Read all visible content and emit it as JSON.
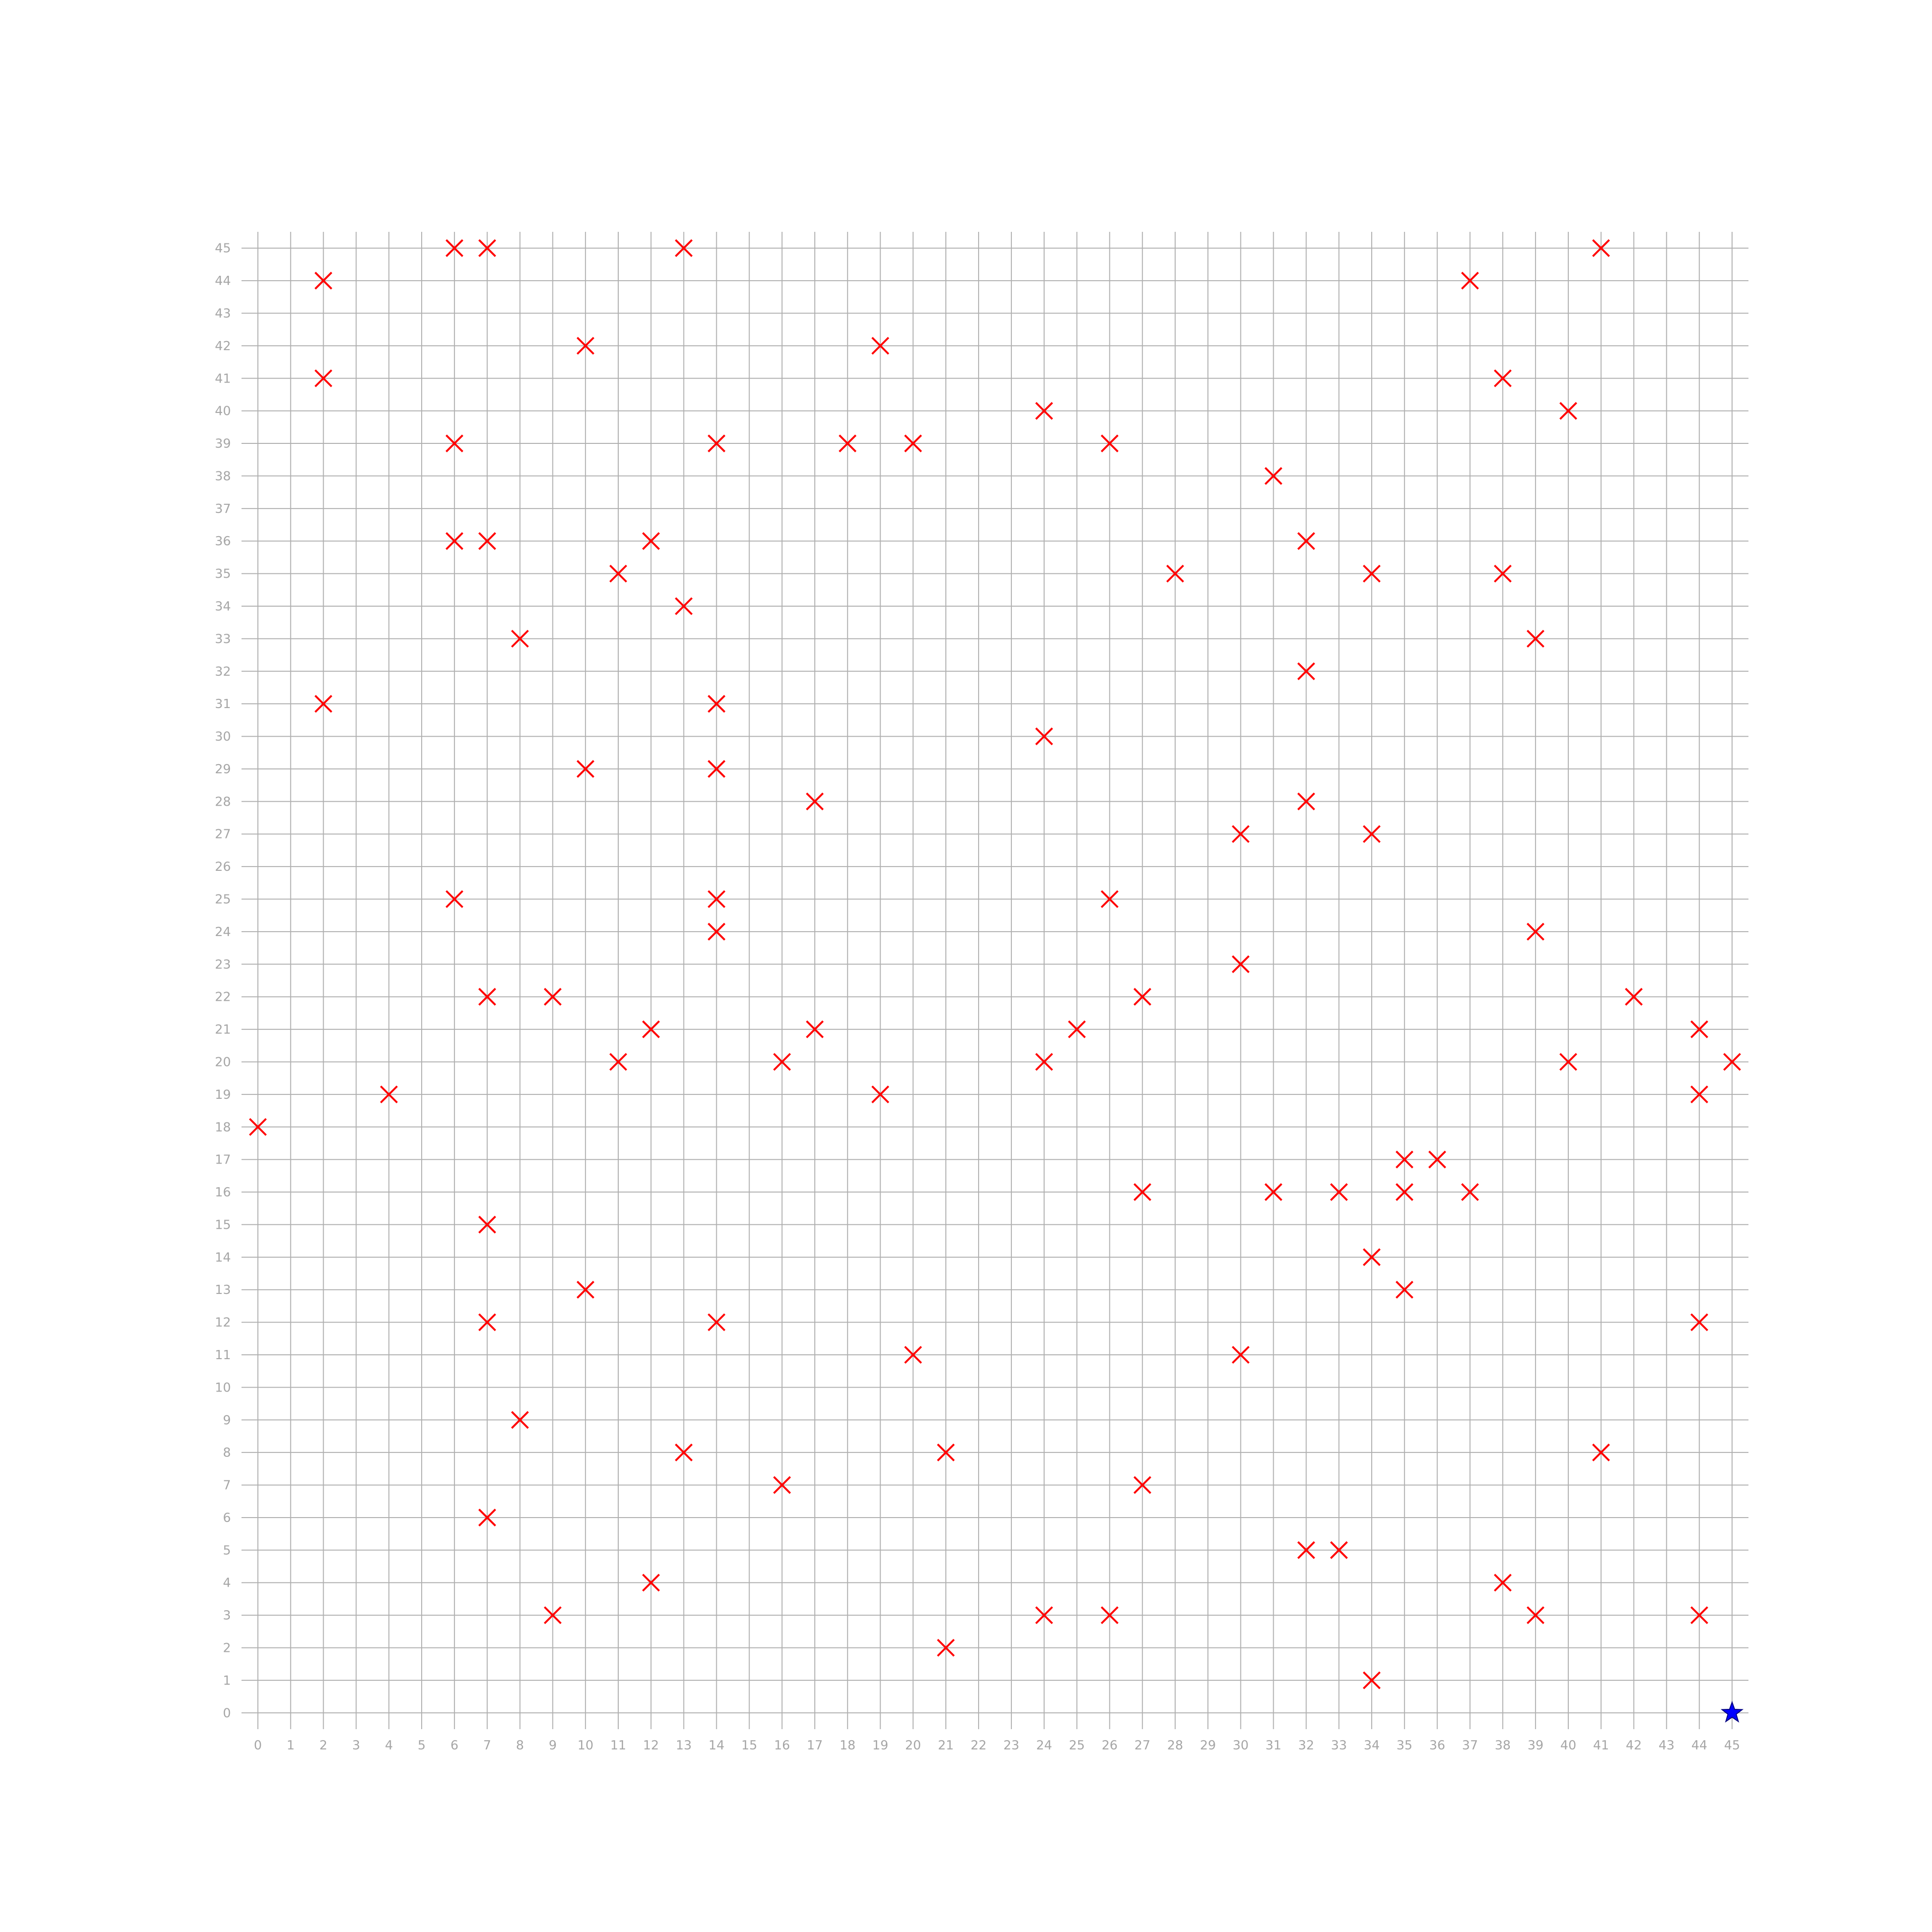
{
  "chart_data": {
    "type": "scatter",
    "title": "",
    "xlabel": "",
    "ylabel": "",
    "xlim": [
      -0.5,
      45.5
    ],
    "ylim": [
      -0.5,
      45.5
    ],
    "grid": true,
    "x_ticks": [
      0,
      1,
      2,
      3,
      4,
      5,
      6,
      7,
      8,
      9,
      10,
      11,
      12,
      13,
      14,
      15,
      16,
      17,
      18,
      19,
      20,
      21,
      22,
      23,
      24,
      25,
      26,
      27,
      28,
      29,
      30,
      31,
      32,
      33,
      34,
      35,
      36,
      37,
      38,
      39,
      40,
      41,
      42,
      43,
      44,
      45
    ],
    "y_ticks": [
      0,
      1,
      2,
      3,
      4,
      5,
      6,
      7,
      8,
      9,
      10,
      11,
      12,
      13,
      14,
      15,
      16,
      17,
      18,
      19,
      20,
      21,
      22,
      23,
      24,
      25,
      26,
      27,
      28,
      29,
      30,
      31,
      32,
      33,
      34,
      35,
      36,
      37,
      38,
      39,
      40,
      41,
      42,
      43,
      44,
      45
    ],
    "series": [
      {
        "marker": "x",
        "color": "#ff0000",
        "points": [
          [
            6,
            45
          ],
          [
            7,
            45
          ],
          [
            13,
            45
          ],
          [
            41,
            45
          ],
          [
            2,
            44
          ],
          [
            37,
            44
          ],
          [
            10,
            42
          ],
          [
            19,
            42
          ],
          [
            2,
            41
          ],
          [
            38,
            41
          ],
          [
            24,
            40
          ],
          [
            40,
            40
          ],
          [
            6,
            39
          ],
          [
            14,
            39
          ],
          [
            18,
            39
          ],
          [
            20,
            39
          ],
          [
            26,
            39
          ],
          [
            31,
            38
          ],
          [
            6,
            36
          ],
          [
            7,
            36
          ],
          [
            12,
            36
          ],
          [
            32,
            36
          ],
          [
            11,
            35
          ],
          [
            28,
            35
          ],
          [
            34,
            35
          ],
          [
            38,
            35
          ],
          [
            13,
            34
          ],
          [
            8,
            33
          ],
          [
            39,
            33
          ],
          [
            32,
            32
          ],
          [
            2,
            31
          ],
          [
            14,
            31
          ],
          [
            24,
            30
          ],
          [
            10,
            29
          ],
          [
            14,
            29
          ],
          [
            17,
            28
          ],
          [
            32,
            28
          ],
          [
            30,
            27
          ],
          [
            34,
            27
          ],
          [
            6,
            25
          ],
          [
            14,
            25
          ],
          [
            26,
            25
          ],
          [
            14,
            24
          ],
          [
            39,
            24
          ],
          [
            30,
            23
          ],
          [
            7,
            22
          ],
          [
            9,
            22
          ],
          [
            27,
            22
          ],
          [
            42,
            22
          ],
          [
            12,
            21
          ],
          [
            17,
            21
          ],
          [
            25,
            21
          ],
          [
            44,
            21
          ],
          [
            11,
            20
          ],
          [
            16,
            20
          ],
          [
            24,
            20
          ],
          [
            40,
            20
          ],
          [
            45,
            20
          ],
          [
            4,
            19
          ],
          [
            19,
            19
          ],
          [
            44,
            19
          ],
          [
            0,
            18
          ],
          [
            35,
            17
          ],
          [
            36,
            17
          ],
          [
            27,
            16
          ],
          [
            31,
            16
          ],
          [
            33,
            16
          ],
          [
            35,
            16
          ],
          [
            37,
            16
          ],
          [
            7,
            15
          ],
          [
            34,
            14
          ],
          [
            10,
            13
          ],
          [
            35,
            13
          ],
          [
            7,
            12
          ],
          [
            14,
            12
          ],
          [
            44,
            12
          ],
          [
            20,
            11
          ],
          [
            30,
            11
          ],
          [
            8,
            9
          ],
          [
            13,
            8
          ],
          [
            21,
            8
          ],
          [
            41,
            8
          ],
          [
            16,
            7
          ],
          [
            27,
            7
          ],
          [
            7,
            6
          ],
          [
            32,
            5
          ],
          [
            33,
            5
          ],
          [
            12,
            4
          ],
          [
            38,
            4
          ],
          [
            9,
            3
          ],
          [
            24,
            3
          ],
          [
            26,
            3
          ],
          [
            39,
            3
          ],
          [
            44,
            3
          ],
          [
            21,
            2
          ],
          [
            34,
            1
          ]
        ]
      },
      {
        "marker": "star",
        "color": "#0000ff",
        "points": [
          [
            45,
            0
          ]
        ]
      }
    ]
  }
}
